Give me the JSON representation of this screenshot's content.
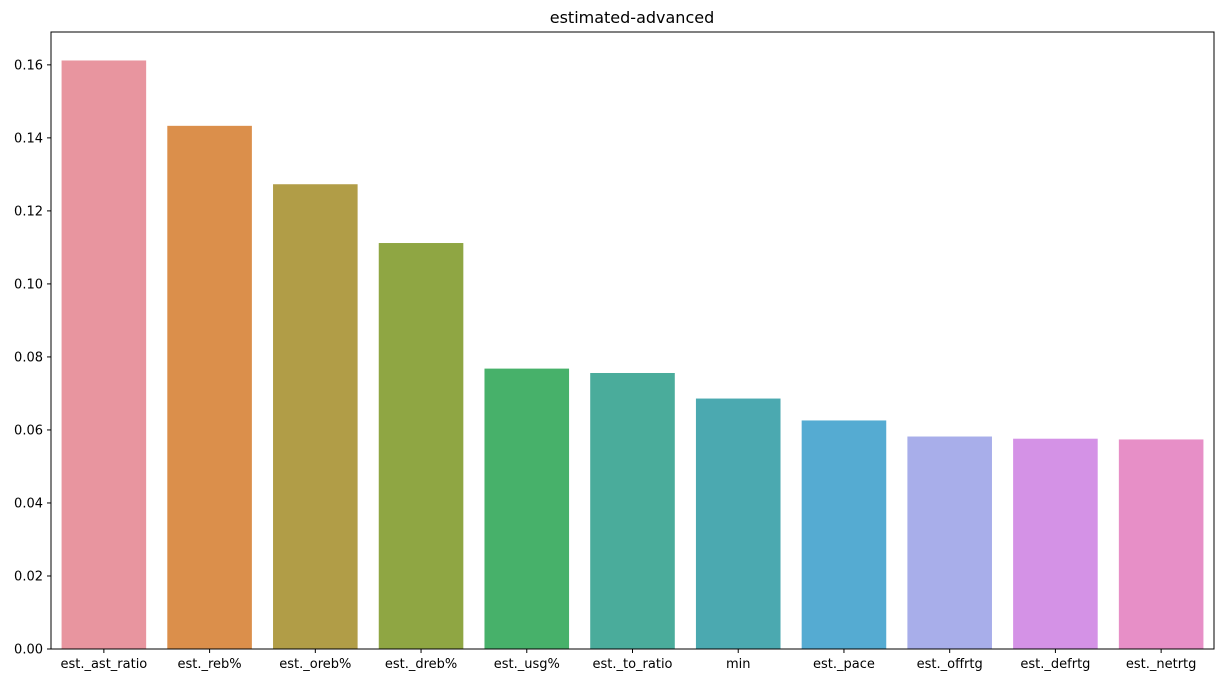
{
  "chart_data": {
    "type": "bar",
    "title": "estimated-advanced",
    "xlabel": "",
    "ylabel": "",
    "categories": [
      "est._ast_ratio",
      "est._reb%",
      "est._oreb%",
      "est._dreb%",
      "est._usg%",
      "est._to_ratio",
      "min",
      "est._pace",
      "est._offrtg",
      "est._defrtg",
      "est._netrtg"
    ],
    "values": [
      0.1612,
      0.1433,
      0.1273,
      0.1112,
      0.0768,
      0.0756,
      0.0686,
      0.0626,
      0.0582,
      0.0576,
      0.0574
    ],
    "colors": [
      "#e8959f",
      "#db8f4b",
      "#b19d47",
      "#8fa643",
      "#47b16a",
      "#4aac9b",
      "#4ba9b0",
      "#55abd2",
      "#a8aeea",
      "#d492e6",
      "#e78fc7"
    ],
    "ylim": [
      0,
      0.169
    ],
    "yticks": [
      "0.00",
      "0.02",
      "0.04",
      "0.06",
      "0.08",
      "0.10",
      "0.12",
      "0.14",
      "0.16"
    ],
    "grid": false,
    "legend": "none"
  }
}
